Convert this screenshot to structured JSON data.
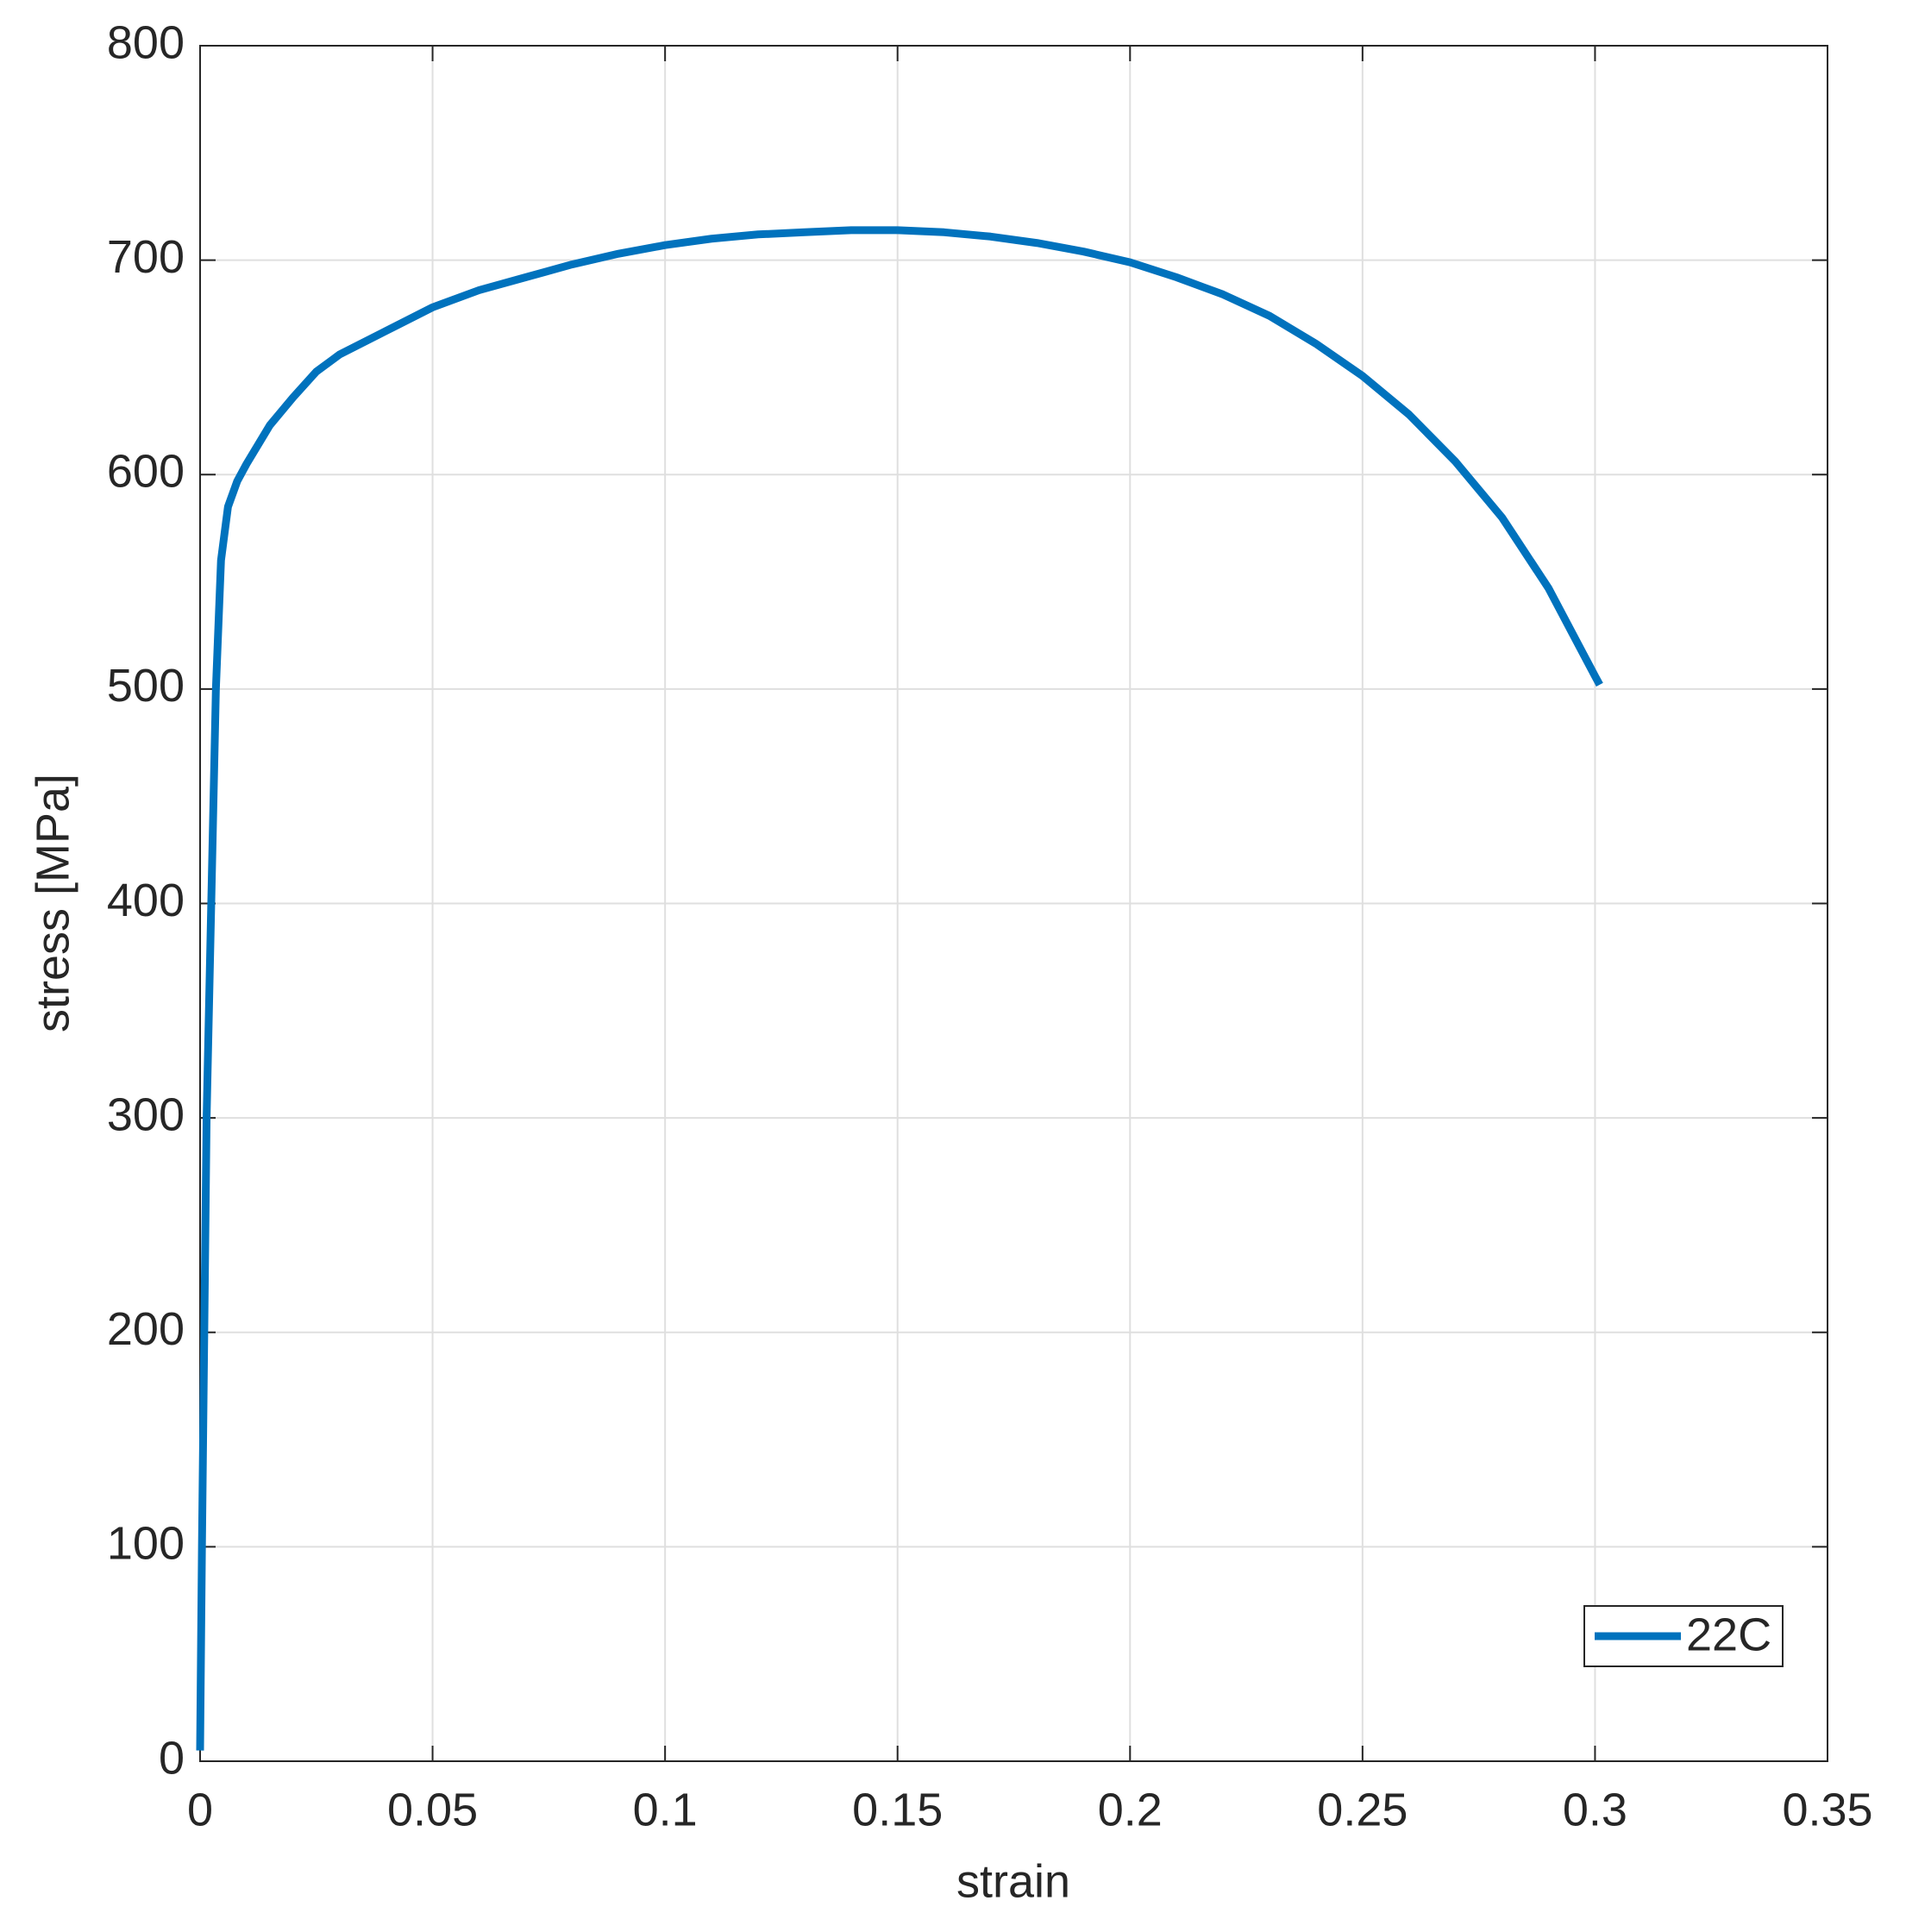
{
  "chart_data": {
    "type": "line",
    "xlabel": "strain",
    "ylabel": "stress [MPa]",
    "xlim": [
      0,
      0.35
    ],
    "ylim": [
      0,
      800
    ],
    "xticks": [
      0,
      0.05,
      0.1,
      0.15,
      0.2,
      0.25,
      0.3,
      0.35
    ],
    "yticks": [
      0,
      100,
      200,
      300,
      400,
      500,
      600,
      700,
      800
    ],
    "grid": true,
    "legend": "lower right",
    "x": [
      0,
      0.0004,
      0.0009,
      0.0014,
      0.0024,
      0.0034,
      0.0045,
      0.006,
      0.008,
      0.01,
      0.015,
      0.02,
      0.025,
      0.03,
      0.04,
      0.05,
      0.06,
      0.07,
      0.08,
      0.09,
      0.1,
      0.11,
      0.12,
      0.13,
      0.14,
      0.15,
      0.16,
      0.17,
      0.18,
      0.19,
      0.2,
      0.21,
      0.22,
      0.23,
      0.24,
      0.25,
      0.26,
      0.27,
      0.28,
      0.29,
      0.3,
      0.301
    ],
    "series": [
      {
        "name": "22C",
        "color": "#0072bd",
        "values": [
          5,
          100,
          200,
          300,
          400,
          500,
          560,
          585,
          597,
          605,
          623,
          636,
          648,
          656,
          667,
          678,
          686,
          692,
          698,
          703,
          707,
          710,
          712,
          713,
          714,
          714,
          713,
          711,
          708,
          704,
          699,
          692,
          684,
          674,
          661,
          646,
          628,
          606,
          580,
          547,
          506,
          502
        ]
      }
    ]
  }
}
